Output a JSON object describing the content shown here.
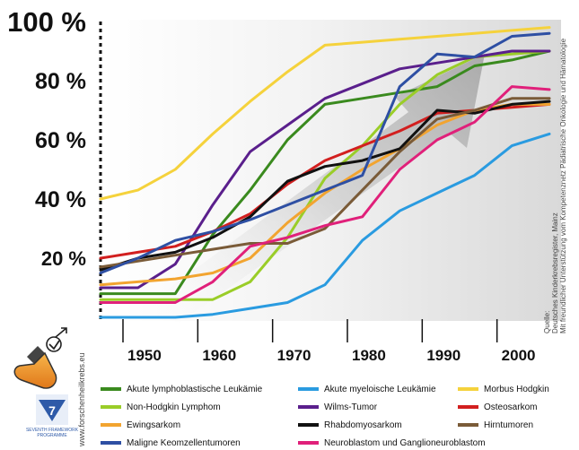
{
  "chart_data": {
    "type": "line",
    "title": "",
    "xlabel": "",
    "ylabel": "",
    "xlim": [
      1947,
      2007
    ],
    "ylim": [
      0,
      100
    ],
    "x_ticks": [
      "1950",
      "1960",
      "1970",
      "1980",
      "1990",
      "2000"
    ],
    "y_ticks": [
      "20 %",
      "40 %",
      "60 %",
      "80 %",
      "100 %"
    ],
    "legend_position": "bottom",
    "series": [
      {
        "name": "Akute lymphoblastische Leukämie",
        "color": "#3a8a1e",
        "x": [
          1947,
          1952,
          1957,
          1962,
          1967,
          1972,
          1977,
          1982,
          1987,
          1992,
          1997,
          2002,
          2007
        ],
        "y": [
          8,
          8,
          8,
          28,
          43,
          60,
          72,
          74,
          76,
          78,
          85,
          87,
          90
        ]
      },
      {
        "name": "Akute myeloische Leukämie",
        "color": "#2a9be0",
        "x": [
          1947,
          1952,
          1957,
          1962,
          1967,
          1972,
          1977,
          1982,
          1987,
          1992,
          1997,
          2002,
          2007
        ],
        "y": [
          0,
          0,
          0,
          1,
          3,
          5,
          11,
          26,
          36,
          42,
          48,
          58,
          62
        ]
      },
      {
        "name": "Morbus Hodgkin",
        "color": "#f5d23c",
        "x": [
          1947,
          1952,
          1957,
          1962,
          1967,
          1972,
          1977,
          1982,
          1987,
          1992,
          1997,
          2002,
          2007
        ],
        "y": [
          40,
          43,
          50,
          62,
          73,
          83,
          92,
          93,
          94,
          95,
          96,
          97,
          98
        ]
      },
      {
        "name": "Non-Hodgkin Lymphom",
        "color": "#9acd28",
        "x": [
          1947,
          1952,
          1957,
          1962,
          1967,
          1972,
          1977,
          1982,
          1987,
          1992,
          1997,
          2002,
          2007
        ],
        "y": [
          6,
          6,
          6,
          6,
          12,
          27,
          47,
          58,
          72,
          82,
          88,
          89,
          90
        ]
      },
      {
        "name": "Wilms-Tumor",
        "color": "#5a1f8c",
        "x": [
          1947,
          1952,
          1957,
          1962,
          1967,
          1972,
          1977,
          1982,
          1987,
          1992,
          1997,
          2002,
          2007
        ],
        "y": [
          10,
          10,
          18,
          38,
          56,
          65,
          74,
          79,
          84,
          86,
          88,
          90,
          90
        ]
      },
      {
        "name": "Osteosarkom",
        "color": "#d21f1f",
        "x": [
          1947,
          1952,
          1957,
          1962,
          1967,
          1972,
          1977,
          1982,
          1987,
          1992,
          1997,
          2002,
          2007
        ],
        "y": [
          20,
          22,
          24,
          29,
          35,
          45,
          53,
          58,
          63,
          69,
          70,
          71,
          72
        ]
      },
      {
        "name": "Ewingsarkom",
        "color": "#f2a430",
        "x": [
          1947,
          1952,
          1957,
          1962,
          1967,
          1972,
          1977,
          1982,
          1987,
          1992,
          1997,
          2002,
          2007
        ],
        "y": [
          11,
          12,
          13,
          15,
          20,
          32,
          42,
          50,
          57,
          65,
          70,
          72,
          72
        ]
      },
      {
        "name": "Rhabdomyosarkom",
        "color": "#111111",
        "x": [
          1947,
          1952,
          1957,
          1962,
          1967,
          1972,
          1977,
          1982,
          1987,
          1992,
          1997,
          2002,
          2007
        ],
        "y": [
          16,
          20,
          22,
          27,
          34,
          46,
          51,
          53,
          57,
          70,
          69,
          72,
          73
        ]
      },
      {
        "name": "Hirntumoren",
        "color": "#7a5b38",
        "x": [
          1947,
          1952,
          1957,
          1962,
          1967,
          1972,
          1977,
          1982,
          1987,
          1992,
          1997,
          2002,
          2007
        ],
        "y": [
          17,
          19,
          21,
          23,
          25,
          25,
          30,
          43,
          56,
          67,
          70,
          74,
          74
        ]
      },
      {
        "name": "Maligne Keomzellentumoren",
        "color": "#2e4fa3",
        "x": [
          1947,
          1952,
          1957,
          1962,
          1967,
          1972,
          1977,
          1982,
          1987,
          1992,
          1997,
          2002,
          2007
        ],
        "y": [
          15,
          20,
          26,
          29,
          33,
          38,
          43,
          48,
          78,
          89,
          88,
          95,
          96
        ]
      },
      {
        "name": "Neuroblastom und Ganglioneuroblastom",
        "color": "#e0207a",
        "x": [
          1947,
          1952,
          1957,
          1962,
          1967,
          1972,
          1977,
          1982,
          1987,
          1992,
          1997,
          2002,
          2007
        ],
        "y": [
          5,
          5,
          5,
          12,
          24,
          27,
          31,
          34,
          50,
          60,
          66,
          78,
          77
        ]
      }
    ]
  },
  "source_note": {
    "line1": "Quelle:",
    "line2": "Deutsches Kinderkrebsregister, Mainz",
    "line3": "Mit freundlicher Unterstützung vom Kompetenznetz Pädiatrische Onkologie und Hämatologie"
  },
  "website": "www.forschenheilkrebs.eu",
  "program_label_1": "SEVENTH FRAMEWORK",
  "program_label_2": "PROGRAMME",
  "fp_mark": "7"
}
